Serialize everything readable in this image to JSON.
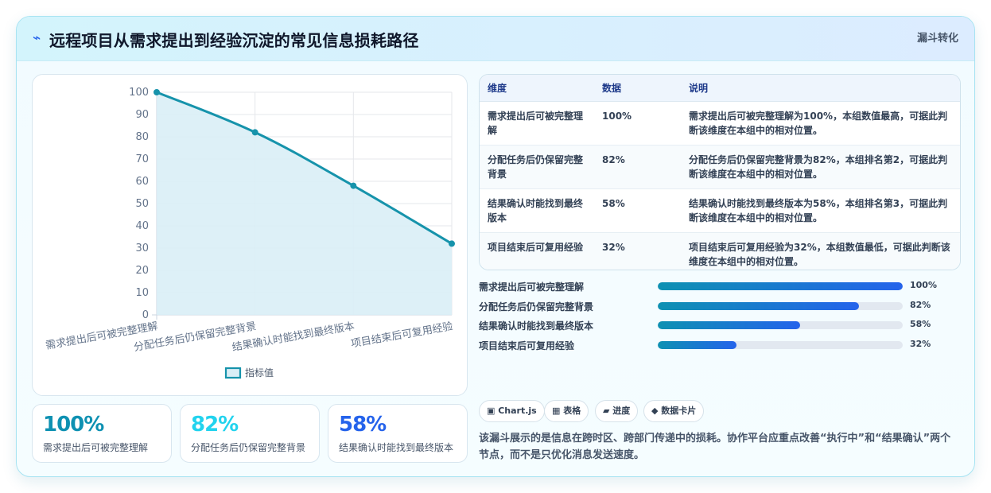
{
  "header": {
    "icon": "lightning-icon",
    "title": "远程项目从需求提出到经验沉淀的常见信息损耗路径",
    "badge": "漏斗转化"
  },
  "colors": {
    "line": "#1693ab",
    "area": "#d9eef6",
    "accent": "#2563eb",
    "kpi1": "#0e91b2",
    "kpi2": "#22d3ee",
    "kpi3": "#2563eb"
  },
  "chart_data": {
    "type": "area",
    "categories": [
      "需求提出后可被完整理解",
      "分配任务后仍保留完整背景",
      "结果确认时能找到最终版本",
      "项目结束后可复用经验"
    ],
    "series": [
      {
        "name": "指标值",
        "values": [
          100,
          82,
          58,
          32
        ]
      }
    ],
    "ylim": [
      0,
      100
    ],
    "yticks": [
      0,
      10,
      20,
      30,
      40,
      50,
      60,
      70,
      80,
      90,
      100
    ],
    "legend": "bottom",
    "grid": true
  },
  "kpis": [
    {
      "value": "100%",
      "label": "需求提出后可被完整理解"
    },
    {
      "value": "82%",
      "label": "分配任务后仍保留完整背景"
    },
    {
      "value": "58%",
      "label": "结果确认时能找到最终版本"
    }
  ],
  "table": {
    "headers": [
      "维度",
      "数据",
      "说明"
    ],
    "rows": [
      [
        "需求提出后可被完整理解",
        "100%",
        "需求提出后可被完整理解为100%，本组数值最高，可据此判断该维度在本组中的相对位置。"
      ],
      [
        "分配任务后仍保留完整背景",
        "82%",
        "分配任务后仍保留完整背景为82%，本组排名第2，可据此判断该维度在本组中的相对位置。"
      ],
      [
        "结果确认时能找到最终版本",
        "58%",
        "结果确认时能找到最终版本为58%，本组排名第3，可据此判断该维度在本组中的相对位置。"
      ],
      [
        "项目结束后可复用经验",
        "32%",
        "项目结束后可复用经验为32%，本组数值最低，可据此判断该维度在本组中的相对位置。"
      ]
    ]
  },
  "progress": [
    {
      "label": "需求提出后可被完整理解",
      "value": 100,
      "display": "100%"
    },
    {
      "label": "分配任务后仍保留完整背景",
      "value": 82,
      "display": "82%"
    },
    {
      "label": "结果确认时能找到最终版本",
      "value": 58,
      "display": "58%"
    },
    {
      "label": "项目结束后可复用经验",
      "value": 32,
      "display": "32%"
    }
  ],
  "chips": [
    "▣ Chart.js",
    "▦ 表格",
    "▰ 进度",
    "◆ 数据卡片"
  ],
  "note": "该漏斗展示的是信息在跨时区、跨部门传递中的损耗。协作平台应重点改善“执行中”和“结果确认”两个节点，而不是只优化消息发送速度。"
}
